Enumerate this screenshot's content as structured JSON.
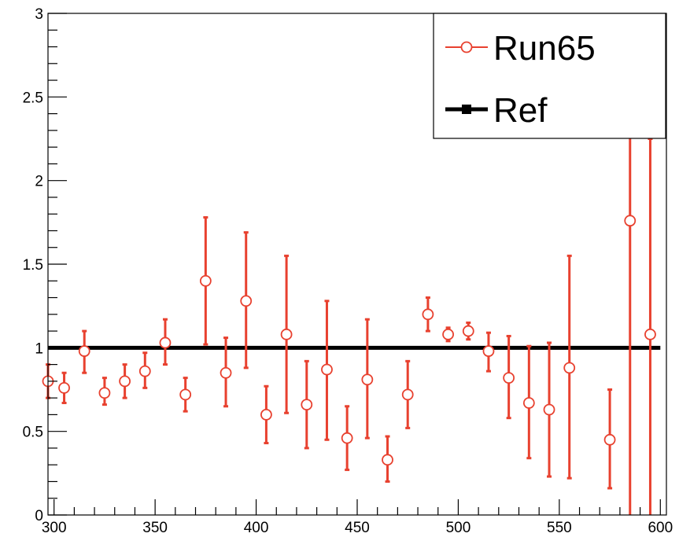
{
  "chart_data": {
    "type": "scatter",
    "xlim": [
      297,
      603
    ],
    "ylim": [
      0,
      3
    ],
    "x_ticks": [
      300,
      350,
      400,
      450,
      500,
      550,
      600
    ],
    "y_ticks": [
      0,
      0.5,
      1,
      1.5,
      2,
      2.5,
      3
    ],
    "x_tick_labels": [
      "300",
      "350",
      "400",
      "450",
      "500",
      "550",
      "600"
    ],
    "y_tick_labels": [
      "0",
      "0.5",
      "1",
      "1.5",
      "2",
      "2.5",
      "3"
    ],
    "grid": false,
    "legend_position": "top-right",
    "series": [
      {
        "name": "Run65",
        "color": "#e8412f",
        "marker": "open-circle",
        "points": [
          {
            "x": 295,
            "y": 0.8,
            "lo": 0.7,
            "hi": 0.9
          },
          {
            "x": 305,
            "y": 0.76,
            "lo": 0.67,
            "hi": 0.85
          },
          {
            "x": 315,
            "y": 0.98,
            "lo": 0.85,
            "hi": 1.1
          },
          {
            "x": 325,
            "y": 0.73,
            "lo": 0.66,
            "hi": 0.82
          },
          {
            "x": 335,
            "y": 0.8,
            "lo": 0.7,
            "hi": 0.9
          },
          {
            "x": 345,
            "y": 0.86,
            "lo": 0.76,
            "hi": 0.97
          },
          {
            "x": 355,
            "y": 1.03,
            "lo": 0.9,
            "hi": 1.17
          },
          {
            "x": 365,
            "y": 0.72,
            "lo": 0.62,
            "hi": 0.82
          },
          {
            "x": 375,
            "y": 1.4,
            "lo": 1.02,
            "hi": 1.78
          },
          {
            "x": 385,
            "y": 0.85,
            "lo": 0.65,
            "hi": 1.06
          },
          {
            "x": 395,
            "y": 1.28,
            "lo": 0.88,
            "hi": 1.69
          },
          {
            "x": 405,
            "y": 0.6,
            "lo": 0.43,
            "hi": 0.77
          },
          {
            "x": 415,
            "y": 1.08,
            "lo": 0.61,
            "hi": 1.55
          },
          {
            "x": 425,
            "y": 0.66,
            "lo": 0.4,
            "hi": 0.92
          },
          {
            "x": 435,
            "y": 0.87,
            "lo": 0.45,
            "hi": 1.28
          },
          {
            "x": 445,
            "y": 0.46,
            "lo": 0.27,
            "hi": 0.65
          },
          {
            "x": 455,
            "y": 0.81,
            "lo": 0.46,
            "hi": 1.17
          },
          {
            "x": 465,
            "y": 0.33,
            "lo": 0.2,
            "hi": 0.47
          },
          {
            "x": 475,
            "y": 0.72,
            "lo": 0.52,
            "hi": 0.92
          },
          {
            "x": 485,
            "y": 1.2,
            "lo": 1.1,
            "hi": 1.3
          },
          {
            "x": 495,
            "y": 1.08,
            "lo": 1.04,
            "hi": 1.12
          },
          {
            "x": 505,
            "y": 1.1,
            "lo": 1.05,
            "hi": 1.15
          },
          {
            "x": 515,
            "y": 0.98,
            "lo": 0.86,
            "hi": 1.09
          },
          {
            "x": 525,
            "y": 0.82,
            "lo": 0.58,
            "hi": 1.07
          },
          {
            "x": 535,
            "y": 0.67,
            "lo": 0.34,
            "hi": 1.01
          },
          {
            "x": 545,
            "y": 0.63,
            "lo": 0.23,
            "hi": 1.03
          },
          {
            "x": 555,
            "y": 0.88,
            "lo": 0.22,
            "hi": 1.55
          },
          {
            "x": 575,
            "y": 0.45,
            "lo": 0.16,
            "hi": 0.75
          },
          {
            "x": 585,
            "y": 1.76,
            "lo": 0.0,
            "hi": 3.0
          },
          {
            "x": 595,
            "y": 1.08,
            "lo": 0.0,
            "hi": 2.25
          }
        ]
      },
      {
        "name": "Ref",
        "color": "#000000",
        "marker": "filled-square",
        "points": [
          {
            "x": 297,
            "y": 1.0
          },
          {
            "x": 600,
            "y": 1.0
          }
        ]
      }
    ]
  }
}
